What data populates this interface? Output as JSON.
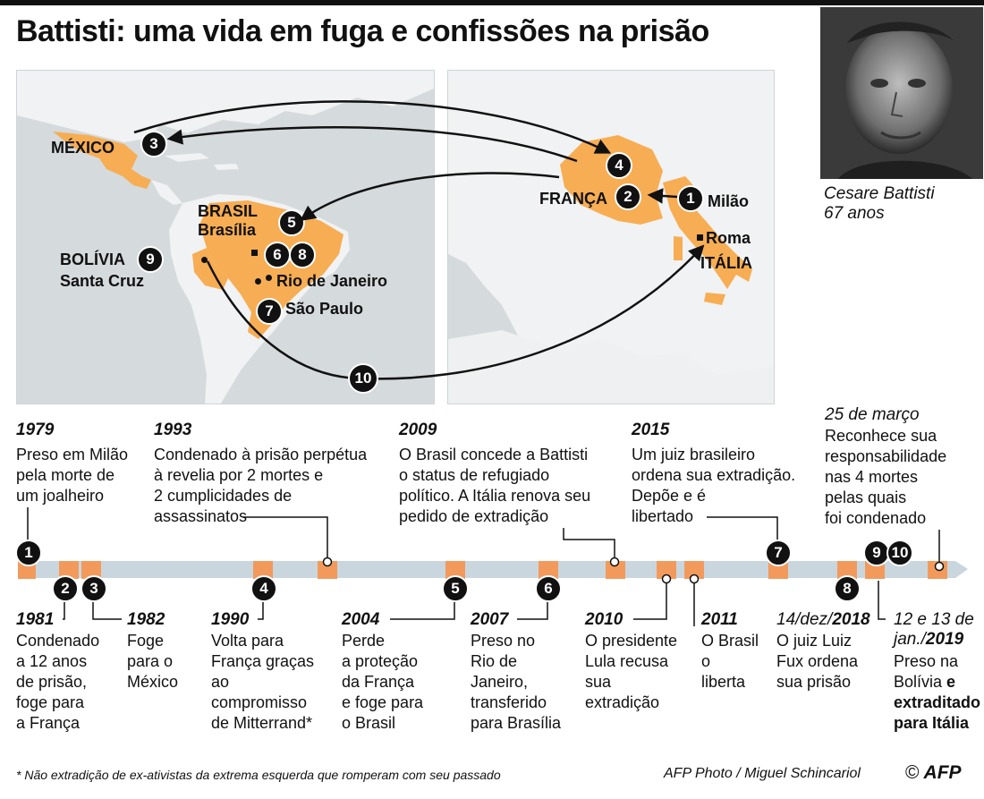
{
  "title": "Battisti: uma vida em fuga e confissões na prisão",
  "photo_caption": {
    "name": "Cesare Battisti",
    "age": "67 anos"
  },
  "colors": {
    "highlight": "#f7ad53",
    "ocean": "#d5dadd",
    "land": "#f0f2f3",
    "bar": "#c9d6de",
    "orange_block": "#f29a5c",
    "marker": "#111111"
  },
  "map_left": {
    "labels": {
      "mexico": "MÉXICO",
      "brasil": "BRASIL",
      "brasilia": "Brasília",
      "bolivia": "BOLÍVIA",
      "santa_cruz": "Santa Cruz",
      "rio": "Rio de Janeiro",
      "sao_paulo": "São Paulo"
    },
    "markers": {
      "m3": "3",
      "m5": "5",
      "m6": "6",
      "m8": "8",
      "m9": "9",
      "m7": "7",
      "m10": "10"
    }
  },
  "map_right": {
    "labels": {
      "franca": "FRANÇA",
      "milao": "Milão",
      "roma": "Roma",
      "italia": "ITÁLIA"
    },
    "markers": {
      "m4": "4",
      "m2": "2",
      "m1": "1"
    }
  },
  "timeline": {
    "above": [
      {
        "year": "1979",
        "text": "Preso em Milão\npela morte de\num joalheiro"
      },
      {
        "year": "1993",
        "text": "Condenado à prisão perpétua\nà revelia por 2 mortes e\n2 cumplicidades de\nassassinatos"
      },
      {
        "year": "2009",
        "text": "O Brasil concede a Battisti\no status de refugiado\npolítico. A Itália renova seu\npedido de extradição"
      },
      {
        "year": "2015",
        "text": "Um juiz brasileiro\nordena sua extradição.\nDepõe e é\nlibertado"
      },
      {
        "year": "25 de março",
        "text": "Reconhece sua\nresponsabilidade\nnas 4 mortes\npelas quais\nfoi condenado"
      }
    ],
    "below": [
      {
        "year": "1981",
        "text": "Condenado\na 12 anos\nde prisão,\nfoge para\na França"
      },
      {
        "year": "1982",
        "text": "Foge\npara o\nMéxico"
      },
      {
        "year": "1990",
        "text": "Volta para\nFrança graças\nao\ncompromisso\nde Mitterrand*"
      },
      {
        "year": "2004",
        "text": "Perde\na proteção\nda França\ne foge para\no Brasil"
      },
      {
        "year": "2007",
        "text": "Preso no\nRio de\nJaneiro,\ntransferido\npara Brasília"
      },
      {
        "year": "2010",
        "text": "O presidente\nLula recusa\nsua\nextradição"
      },
      {
        "year": "2011",
        "text": "O Brasil\no\nliberta"
      },
      {
        "year_prefix": "14/dez/",
        "year": "2018",
        "text": "O juiz Luiz\nFux ordena\nsua prisão"
      },
      {
        "year_prefix": "12 e 13 de\njan./",
        "year": "2019",
        "text": "Preso na\nBolívia",
        "text_bold": "e\nextraditado\npara Itália"
      }
    ],
    "markers": [
      "1",
      "2",
      "3",
      "4",
      "5",
      "6",
      "7",
      "8",
      "9",
      "10"
    ]
  },
  "footnote": "* Não extradição de ex-ativistas da extrema esquerda que romperam com seu passado",
  "credit": "AFP Photo / Miguel Schincariol",
  "copyright": "©",
  "logo_text": "AFP"
}
